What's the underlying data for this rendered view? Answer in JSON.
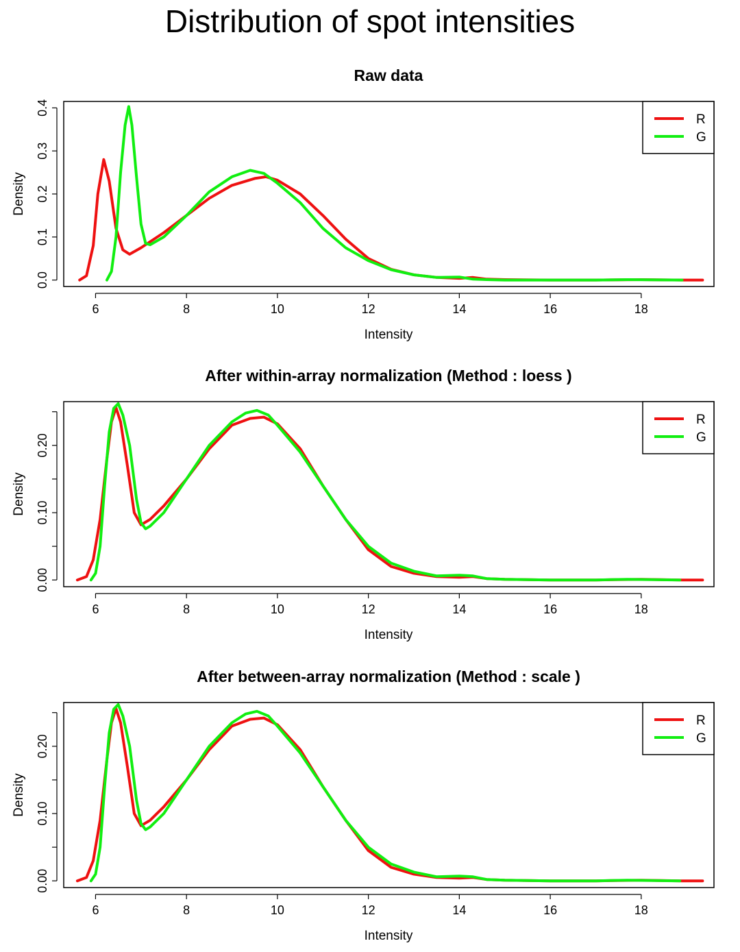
{
  "title": "Distribution of spot intensities",
  "colors": {
    "R": "#ee1111",
    "G": "#11ee11"
  },
  "chart_data": [
    {
      "type": "line",
      "title": "Raw data",
      "xlabel": "Intensity",
      "ylabel": "Density",
      "xlim": [
        5.3,
        19.6
      ],
      "ylim": [
        -0.015,
        0.415
      ],
      "xticks": [
        6,
        8,
        10,
        12,
        14,
        16,
        18
      ],
      "yticks": [
        0.0,
        0.1,
        0.2,
        0.3,
        0.4
      ],
      "ytick_labels": [
        "0.0",
        "0.1",
        "0.2",
        "0.3",
        "0.4"
      ],
      "legend": "top-right",
      "series": [
        {
          "name": "R",
          "color": "#ee1111",
          "x": [
            5.65,
            5.8,
            5.95,
            6.05,
            6.18,
            6.3,
            6.45,
            6.6,
            6.75,
            7.0,
            7.5,
            8.0,
            8.5,
            9.0,
            9.5,
            9.75,
            10.0,
            10.5,
            11.0,
            11.5,
            12.0,
            12.5,
            13.0,
            13.5,
            14.0,
            14.3,
            14.6,
            15.0,
            16.0,
            17.0,
            18.0,
            18.9,
            19.35
          ],
          "y": [
            0.0,
            0.01,
            0.08,
            0.2,
            0.28,
            0.23,
            0.12,
            0.07,
            0.06,
            0.075,
            0.11,
            0.15,
            0.19,
            0.22,
            0.236,
            0.24,
            0.232,
            0.2,
            0.15,
            0.095,
            0.05,
            0.025,
            0.012,
            0.006,
            0.004,
            0.006,
            0.002,
            0.001,
            0.0,
            0.0,
            0.001,
            0.0,
            0.0
          ]
        },
        {
          "name": "G",
          "color": "#11ee11",
          "x": [
            6.25,
            6.35,
            6.45,
            6.55,
            6.65,
            6.73,
            6.8,
            6.9,
            7.0,
            7.1,
            7.2,
            7.5,
            8.0,
            8.5,
            9.0,
            9.4,
            9.7,
            10.0,
            10.5,
            11.0,
            11.5,
            12.0,
            12.5,
            13.0,
            13.5,
            14.0,
            14.3,
            14.6,
            15.0,
            16.0,
            17.0,
            17.7,
            18.9
          ],
          "y": [
            0.0,
            0.02,
            0.1,
            0.25,
            0.36,
            0.403,
            0.36,
            0.24,
            0.13,
            0.085,
            0.082,
            0.1,
            0.15,
            0.205,
            0.24,
            0.255,
            0.248,
            0.225,
            0.18,
            0.12,
            0.075,
            0.045,
            0.024,
            0.012,
            0.006,
            0.007,
            0.002,
            0.001,
            0.0,
            0.0,
            0.0,
            0.001,
            0.0
          ]
        }
      ]
    },
    {
      "type": "line",
      "title": "After within-array normalization (Method : loess )",
      "xlabel": "Intensity",
      "ylabel": "Density",
      "xlim": [
        5.3,
        19.6
      ],
      "ylim": [
        -0.01,
        0.265
      ],
      "xticks": [
        6,
        8,
        10,
        12,
        14,
        16,
        18
      ],
      "yticks": [
        0.0,
        0.1,
        0.2
      ],
      "ytick_labels": [
        "0.00",
        "0.10",
        "0.20"
      ],
      "minor_yticks": [
        0.05,
        0.15,
        0.25
      ],
      "legend": "top-right",
      "series": [
        {
          "name": "R",
          "color": "#ee1111",
          "x": [
            5.6,
            5.8,
            5.95,
            6.1,
            6.25,
            6.35,
            6.45,
            6.55,
            6.7,
            6.85,
            7.0,
            7.2,
            7.5,
            8.0,
            8.5,
            9.0,
            9.4,
            9.7,
            10.0,
            10.5,
            11.0,
            11.5,
            12.0,
            12.5,
            13.0,
            13.5,
            14.0,
            14.3,
            14.6,
            15.0,
            16.0,
            17.0,
            18.0,
            18.9,
            19.35
          ],
          "y": [
            0.0,
            0.005,
            0.03,
            0.09,
            0.18,
            0.235,
            0.256,
            0.235,
            0.17,
            0.1,
            0.082,
            0.09,
            0.11,
            0.15,
            0.195,
            0.23,
            0.24,
            0.242,
            0.232,
            0.195,
            0.14,
            0.09,
            0.045,
            0.02,
            0.01,
            0.005,
            0.004,
            0.005,
            0.002,
            0.001,
            0.0,
            0.0,
            0.001,
            0.0,
            0.0
          ]
        },
        {
          "name": "G",
          "color": "#11ee11",
          "x": [
            5.9,
            6.0,
            6.1,
            6.2,
            6.3,
            6.4,
            6.5,
            6.6,
            6.75,
            6.9,
            7.0,
            7.1,
            7.2,
            7.5,
            8.0,
            8.5,
            9.0,
            9.3,
            9.55,
            9.8,
            10.0,
            10.5,
            11.0,
            11.5,
            12.0,
            12.5,
            13.0,
            13.5,
            14.0,
            14.3,
            14.6,
            15.0,
            16.0,
            17.0,
            17.7,
            18.85
          ],
          "y": [
            0.0,
            0.01,
            0.05,
            0.14,
            0.22,
            0.255,
            0.262,
            0.245,
            0.2,
            0.12,
            0.085,
            0.076,
            0.08,
            0.1,
            0.15,
            0.2,
            0.235,
            0.248,
            0.252,
            0.245,
            0.23,
            0.19,
            0.14,
            0.09,
            0.05,
            0.025,
            0.013,
            0.006,
            0.007,
            0.006,
            0.002,
            0.001,
            0.0,
            0.0,
            0.001,
            0.0
          ]
        }
      ]
    },
    {
      "type": "line",
      "title": "After between-array normalization (Method : scale )",
      "xlabel": "Intensity",
      "ylabel": "Density",
      "xlim": [
        5.3,
        19.6
      ],
      "ylim": [
        -0.01,
        0.265
      ],
      "xticks": [
        6,
        8,
        10,
        12,
        14,
        16,
        18
      ],
      "yticks": [
        0.0,
        0.1,
        0.2
      ],
      "ytick_labels": [
        "0.00",
        "0.10",
        "0.20"
      ],
      "minor_yticks": [
        0.05,
        0.15,
        0.25
      ],
      "legend": "top-right",
      "series": [
        {
          "name": "R",
          "color": "#ee1111",
          "x": [
            5.6,
            5.8,
            5.95,
            6.1,
            6.25,
            6.35,
            6.45,
            6.55,
            6.7,
            6.85,
            7.0,
            7.2,
            7.5,
            8.0,
            8.5,
            9.0,
            9.4,
            9.7,
            10.0,
            10.5,
            11.0,
            11.5,
            12.0,
            12.5,
            13.0,
            13.5,
            14.0,
            14.3,
            14.6,
            15.0,
            16.0,
            17.0,
            18.0,
            18.9,
            19.35
          ],
          "y": [
            0.0,
            0.005,
            0.03,
            0.09,
            0.18,
            0.235,
            0.256,
            0.235,
            0.17,
            0.1,
            0.082,
            0.09,
            0.11,
            0.15,
            0.195,
            0.23,
            0.24,
            0.242,
            0.232,
            0.195,
            0.14,
            0.09,
            0.045,
            0.02,
            0.01,
            0.005,
            0.004,
            0.005,
            0.002,
            0.001,
            0.0,
            0.0,
            0.001,
            0.0,
            0.0
          ]
        },
        {
          "name": "G",
          "color": "#11ee11",
          "x": [
            5.9,
            6.0,
            6.1,
            6.2,
            6.3,
            6.4,
            6.5,
            6.6,
            6.75,
            6.9,
            7.0,
            7.1,
            7.2,
            7.5,
            8.0,
            8.5,
            9.0,
            9.3,
            9.55,
            9.8,
            10.0,
            10.5,
            11.0,
            11.5,
            12.0,
            12.5,
            13.0,
            13.5,
            14.0,
            14.3,
            14.6,
            15.0,
            16.0,
            17.0,
            17.7,
            18.85
          ],
          "y": [
            0.0,
            0.01,
            0.05,
            0.14,
            0.22,
            0.255,
            0.262,
            0.245,
            0.2,
            0.12,
            0.085,
            0.076,
            0.08,
            0.1,
            0.15,
            0.2,
            0.235,
            0.248,
            0.252,
            0.245,
            0.23,
            0.19,
            0.14,
            0.09,
            0.05,
            0.025,
            0.013,
            0.006,
            0.007,
            0.006,
            0.002,
            0.001,
            0.0,
            0.0,
            0.001,
            0.0
          ]
        }
      ]
    }
  ]
}
